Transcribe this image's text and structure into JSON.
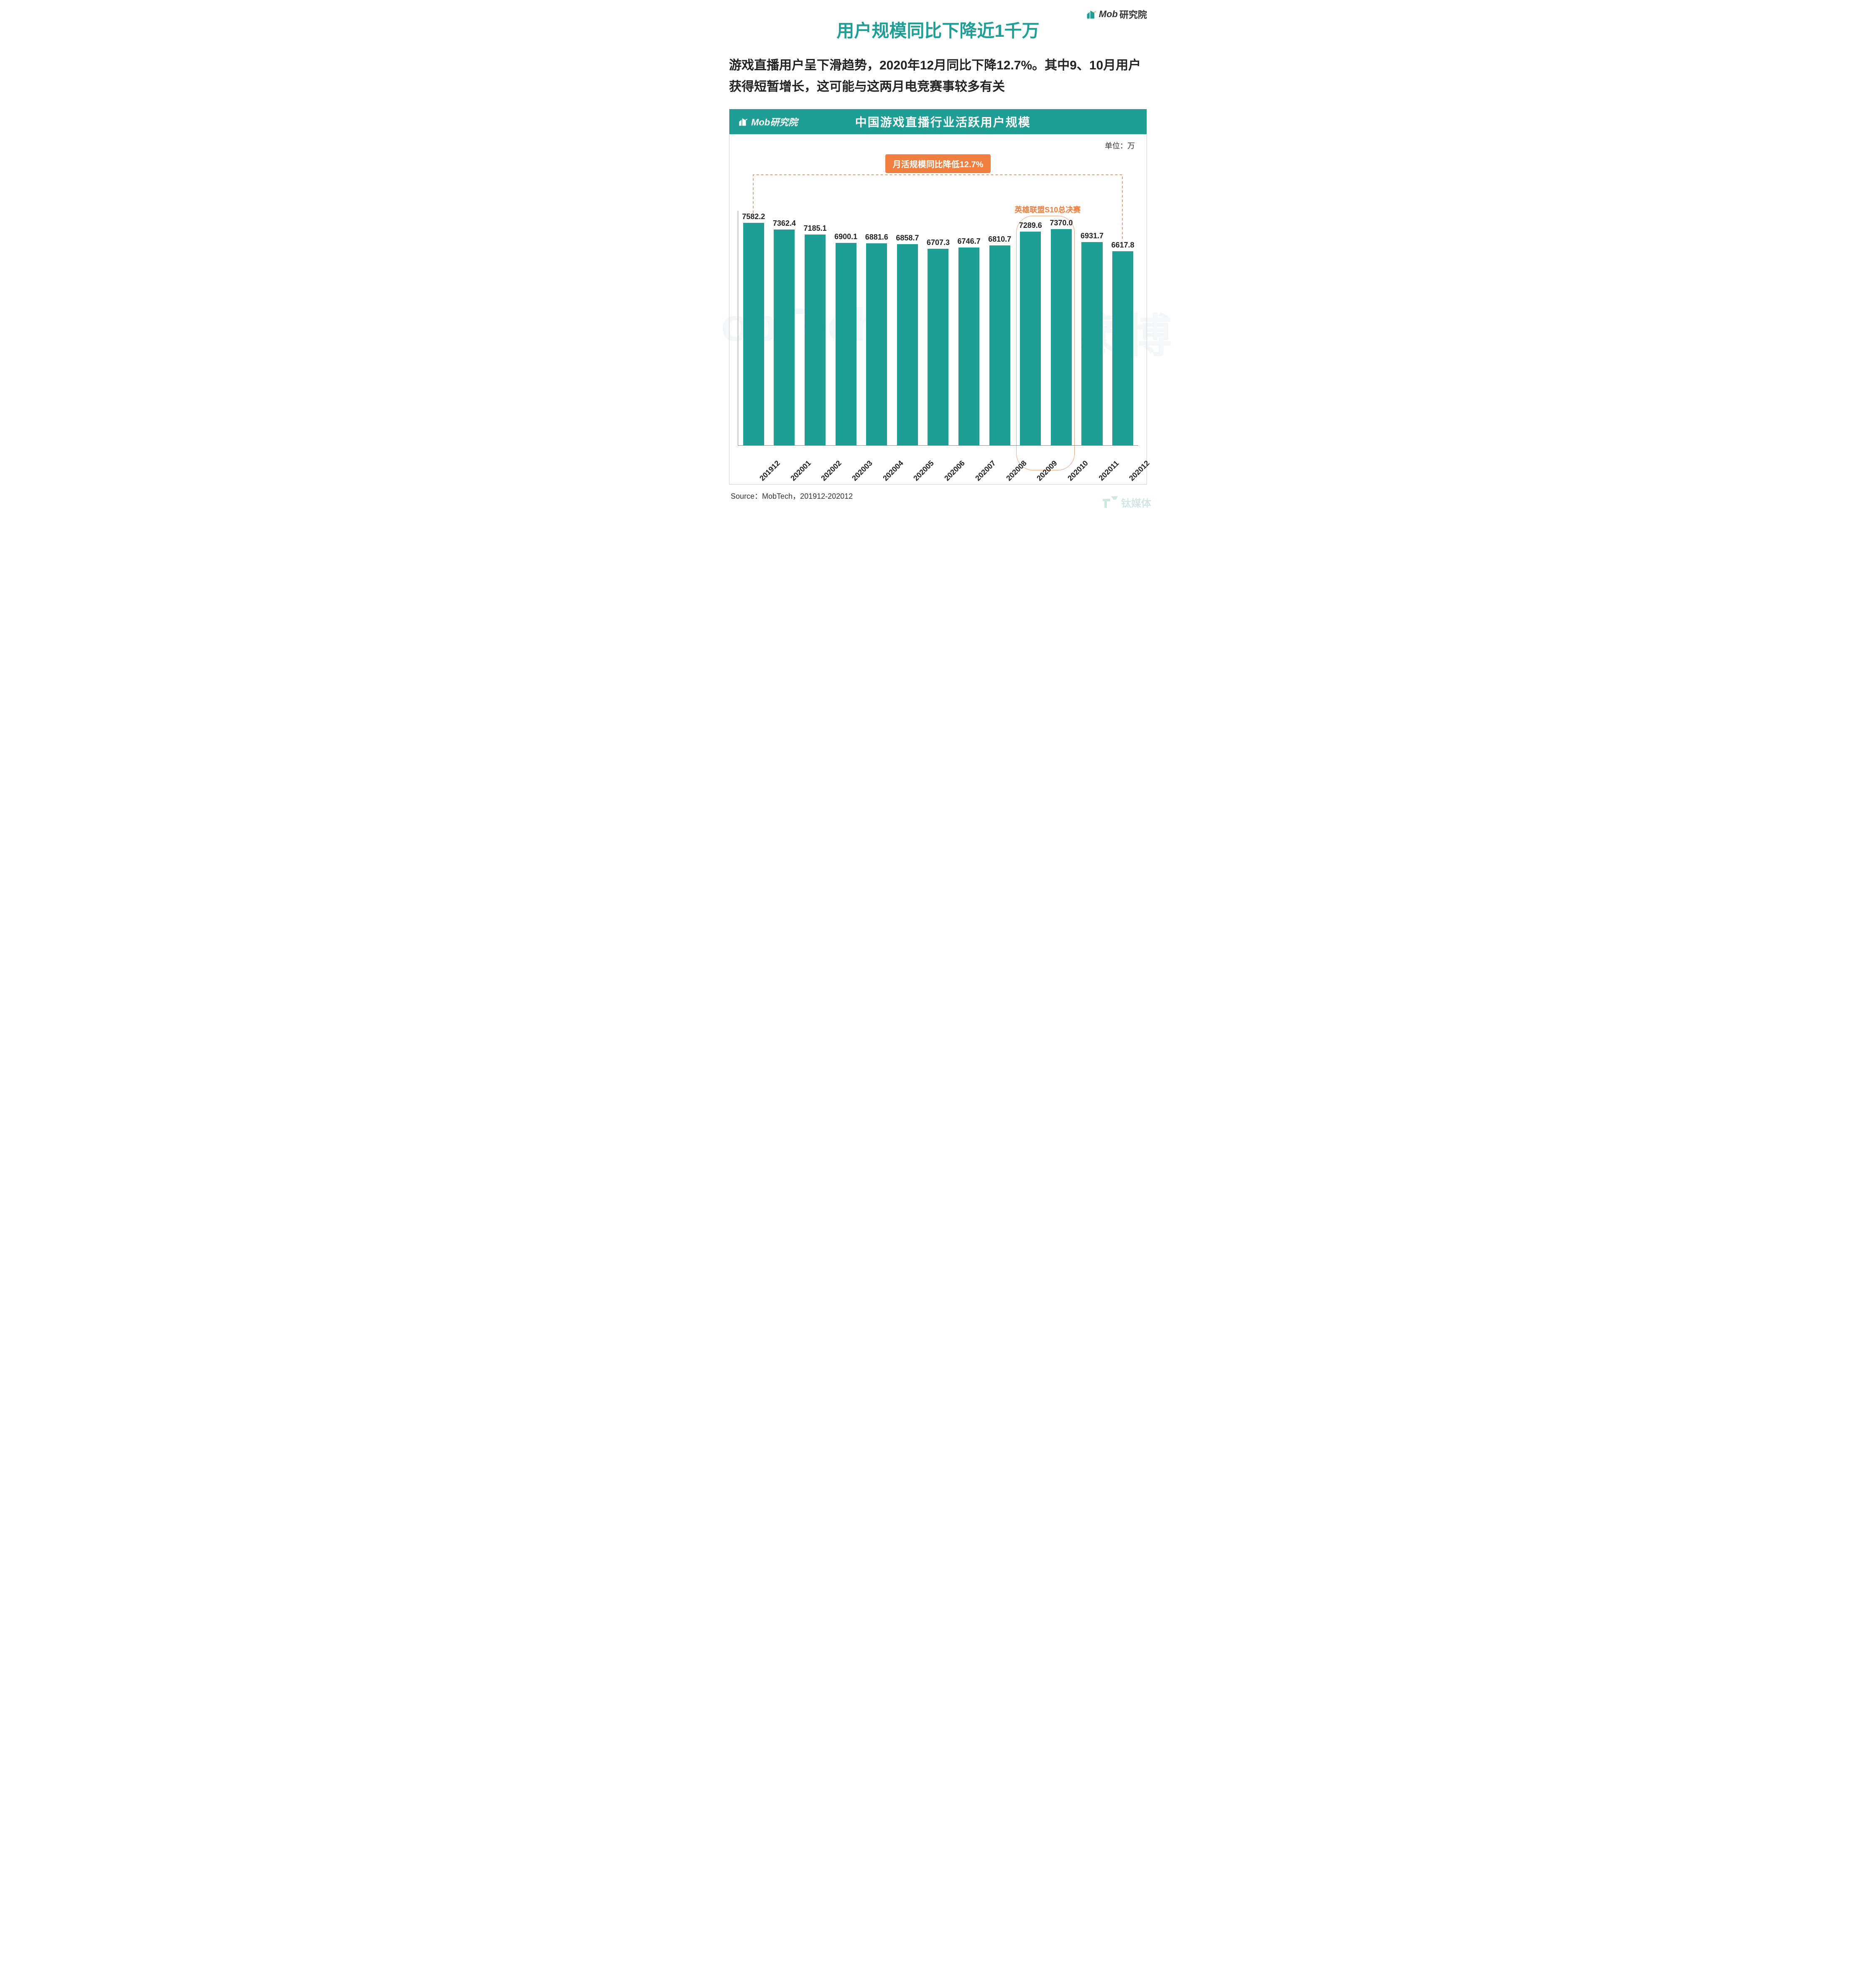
{
  "brand": {
    "logo_text_bold": "Mob",
    "logo_text_rest": "研究院",
    "logo_color": "#1e9e94"
  },
  "title": "用户规模同比下降近1千万",
  "title_color": "#1e9e94",
  "subtitle": "游戏直播用户呈下滑趋势，2020年12月同比下降12.7%。其中9、10月用户获得短暂增长，这可能与这两月电竞赛事较多有关",
  "chart": {
    "type": "bar",
    "header_logo": "Mob研究院",
    "header_title": "中国游戏直播行业活跃用户规模",
    "header_bg": "#1e9e94",
    "unit_label": "单位：万",
    "callout_text": "月活规模同比降低12.7%",
    "callout_bg": "#f07e3e",
    "event_label": "英雄联盟S10总决赛",
    "event_color": "#f07e3e",
    "event_range": [
      9,
      10
    ],
    "categories": [
      "201912",
      "202001",
      "202002",
      "202003",
      "202004",
      "202005",
      "202006",
      "202007",
      "202008",
      "202009",
      "202010",
      "202011",
      "202012"
    ],
    "values": [
      7582.2,
      7362.4,
      7185.1,
      6900.1,
      6881.6,
      6858.7,
      6707.3,
      6746.7,
      6810.7,
      7289.6,
      7370.0,
      6931.7,
      6617.8
    ],
    "bar_color": "#1e9e94",
    "axis_color": "#888888",
    "label_color": "#222222",
    "label_fontsize": 18,
    "y_max": 8000,
    "background_color": "#ffffff",
    "xlabel_rotation": -45,
    "xlabel_fontweight": "bold",
    "bar_width": 0.68,
    "bracket_targets": [
      0,
      12
    ]
  },
  "source": "Source：MobTech，201912-202012",
  "bottom_watermark": "钛媒体",
  "side_watermark_left": "obTech",
  "side_watermark_right": "袤博"
}
